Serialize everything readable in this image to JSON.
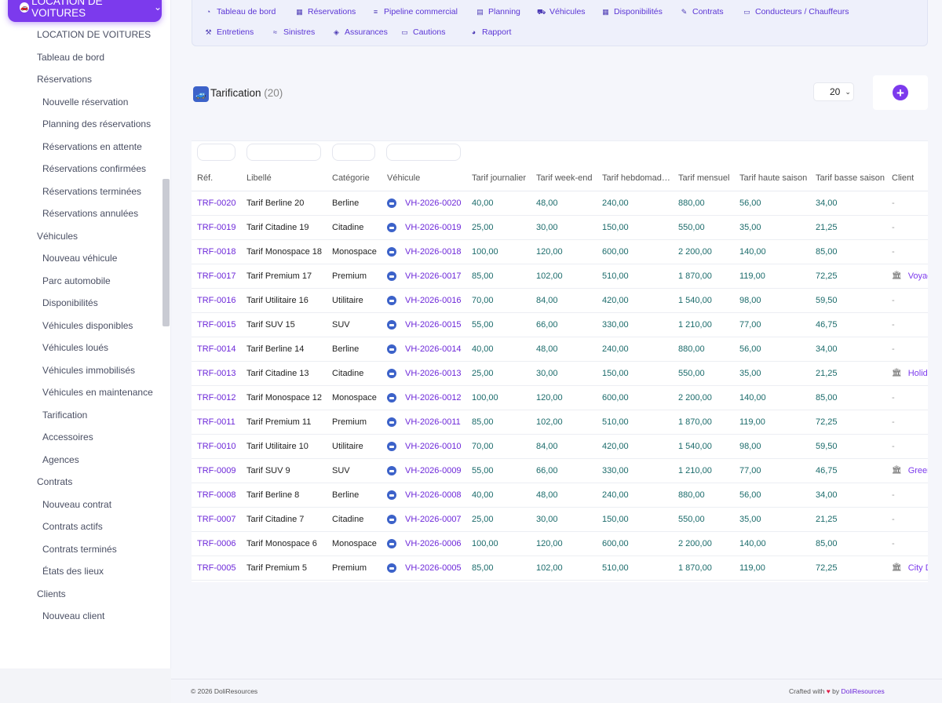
{
  "sidebar": {
    "module_label": "LOCATION DE VOITURES",
    "items": [
      {
        "label": "LOCATION DE VOITURES",
        "level": 1
      },
      {
        "label": "Tableau de bord",
        "level": 1
      },
      {
        "label": "Réservations",
        "level": 1
      },
      {
        "label": "Nouvelle réservation",
        "level": 2
      },
      {
        "label": "Planning des réservations",
        "level": 2
      },
      {
        "label": "Réservations en attente",
        "level": 2
      },
      {
        "label": "Réservations confirmées",
        "level": 2
      },
      {
        "label": "Réservations terminées",
        "level": 2
      },
      {
        "label": "Réservations annulées",
        "level": 2
      },
      {
        "label": "Véhicules",
        "level": 1
      },
      {
        "label": "Nouveau véhicule",
        "level": 2
      },
      {
        "label": "Parc automobile",
        "level": 2
      },
      {
        "label": "Disponibilités",
        "level": 2
      },
      {
        "label": "Véhicules disponibles",
        "level": 2
      },
      {
        "label": "Véhicules loués",
        "level": 2
      },
      {
        "label": "Véhicules immobilisés",
        "level": 2
      },
      {
        "label": "Véhicules en maintenance",
        "level": 2
      },
      {
        "label": "Tarification",
        "level": 2
      },
      {
        "label": "Accessoires",
        "level": 2
      },
      {
        "label": "Agences",
        "level": 2
      },
      {
        "label": "Contrats",
        "level": 1
      },
      {
        "label": "Nouveau contrat",
        "level": 2
      },
      {
        "label": "Contrats actifs",
        "level": 2
      },
      {
        "label": "Contrats terminés",
        "level": 2
      },
      {
        "label": "États des lieux",
        "level": 2
      },
      {
        "label": "Clients",
        "level": 1
      },
      {
        "label": "Nouveau client",
        "level": 2
      }
    ]
  },
  "topnav": {
    "row1": [
      {
        "label": "Tableau de bord",
        "icon": "dashboard-icon"
      },
      {
        "label": "Réservations",
        "icon": "calendar-check-icon"
      },
      {
        "label": "Pipeline commercial",
        "icon": "list-icon"
      },
      {
        "label": "Planning",
        "icon": "calendar-icon"
      },
      {
        "label": "Véhicules",
        "icon": "car-icon"
      },
      {
        "label": "Disponibilités",
        "icon": "grid-icon"
      },
      {
        "label": "Contrats",
        "icon": "contract-icon"
      },
      {
        "label": "Conducteurs / Chauffeurs",
        "icon": "id-card-icon"
      }
    ],
    "row2": [
      {
        "label": "Entretiens",
        "icon": "wrench-icon"
      },
      {
        "label": "Sinistres",
        "icon": "car-crash-icon"
      },
      {
        "label": "Assurances",
        "icon": "shield-icon"
      },
      {
        "label": "Cautions",
        "icon": "money-icon"
      },
      {
        "label": "Rapport",
        "icon": "chart-pie-icon"
      }
    ]
  },
  "page": {
    "title": "Tarification",
    "count": "(20)",
    "limit": "20"
  },
  "table": {
    "columns": [
      "Réf.",
      "Libellé",
      "Catégorie",
      "Véhicule",
      "Tarif journalier",
      "Tarif week-end",
      "Tarif hebdomadaire",
      "Tarif mensuel",
      "Tarif haute saison",
      "Tarif basse saison",
      "Client"
    ],
    "rows": [
      {
        "ref": "TRF-0020",
        "label": "Tarif Berline 20",
        "category": "Berline",
        "vehicle": "VH-2026-0020",
        "daily": "40,00",
        "weekend": "48,00",
        "weekly": "240,00",
        "monthly": "880,00",
        "high": "56,00",
        "low": "34,00",
        "client": "-"
      },
      {
        "ref": "TRF-0019",
        "label": "Tarif Citadine 19",
        "category": "Citadine",
        "vehicle": "VH-2026-0019",
        "daily": "25,00",
        "weekend": "30,00",
        "weekly": "150,00",
        "monthly": "550,00",
        "high": "35,00",
        "low": "21,25",
        "client": "-"
      },
      {
        "ref": "TRF-0018",
        "label": "Tarif Monospace 18",
        "category": "Monospace",
        "vehicle": "VH-2026-0018",
        "daily": "100,00",
        "weekend": "120,00",
        "weekly": "600,00",
        "monthly": "2 200,00",
        "high": "140,00",
        "low": "85,00",
        "client": "-"
      },
      {
        "ref": "TRF-0017",
        "label": "Tarif Premium 17",
        "category": "Premium",
        "vehicle": "VH-2026-0017",
        "daily": "85,00",
        "weekend": "102,00",
        "weekly": "510,00",
        "monthly": "1 870,00",
        "high": "119,00",
        "low": "72,25",
        "client": "Voyag"
      },
      {
        "ref": "TRF-0016",
        "label": "Tarif Utilitaire 16",
        "category": "Utilitaire",
        "vehicle": "VH-2026-0016",
        "daily": "70,00",
        "weekend": "84,00",
        "weekly": "420,00",
        "monthly": "1 540,00",
        "high": "98,00",
        "low": "59,50",
        "client": "-"
      },
      {
        "ref": "TRF-0015",
        "label": "Tarif SUV 15",
        "category": "SUV",
        "vehicle": "VH-2026-0015",
        "daily": "55,00",
        "weekend": "66,00",
        "weekly": "330,00",
        "monthly": "1 210,00",
        "high": "77,00",
        "low": "46,75",
        "client": "-"
      },
      {
        "ref": "TRF-0014",
        "label": "Tarif Berline 14",
        "category": "Berline",
        "vehicle": "VH-2026-0014",
        "daily": "40,00",
        "weekend": "48,00",
        "weekly": "240,00",
        "monthly": "880,00",
        "high": "56,00",
        "low": "34,00",
        "client": "-"
      },
      {
        "ref": "TRF-0013",
        "label": "Tarif Citadine 13",
        "category": "Citadine",
        "vehicle": "VH-2026-0013",
        "daily": "25,00",
        "weekend": "30,00",
        "weekly": "150,00",
        "monthly": "550,00",
        "high": "35,00",
        "low": "21,25",
        "client": "Holida"
      },
      {
        "ref": "TRF-0012",
        "label": "Tarif Monospace 12",
        "category": "Monospace",
        "vehicle": "VH-2026-0012",
        "daily": "100,00",
        "weekend": "120,00",
        "weekly": "600,00",
        "monthly": "2 200,00",
        "high": "140,00",
        "low": "85,00",
        "client": "-"
      },
      {
        "ref": "TRF-0011",
        "label": "Tarif Premium 11",
        "category": "Premium",
        "vehicle": "VH-2026-0011",
        "daily": "85,00",
        "weekend": "102,00",
        "weekly": "510,00",
        "monthly": "1 870,00",
        "high": "119,00",
        "low": "72,25",
        "client": "-"
      },
      {
        "ref": "TRF-0010",
        "label": "Tarif Utilitaire 10",
        "category": "Utilitaire",
        "vehicle": "VH-2026-0010",
        "daily": "70,00",
        "weekend": "84,00",
        "weekly": "420,00",
        "monthly": "1 540,00",
        "high": "98,00",
        "low": "59,50",
        "client": "-"
      },
      {
        "ref": "TRF-0009",
        "label": "Tarif SUV 9",
        "category": "SUV",
        "vehicle": "VH-2026-0009",
        "daily": "55,00",
        "weekend": "66,00",
        "weekly": "330,00",
        "monthly": "1 210,00",
        "high": "77,00",
        "low": "46,75",
        "client": "Green"
      },
      {
        "ref": "TRF-0008",
        "label": "Tarif Berline 8",
        "category": "Berline",
        "vehicle": "VH-2026-0008",
        "daily": "40,00",
        "weekend": "48,00",
        "weekly": "240,00",
        "monthly": "880,00",
        "high": "56,00",
        "low": "34,00",
        "client": "-"
      },
      {
        "ref": "TRF-0007",
        "label": "Tarif Citadine 7",
        "category": "Citadine",
        "vehicle": "VH-2026-0007",
        "daily": "25,00",
        "weekend": "30,00",
        "weekly": "150,00",
        "monthly": "550,00",
        "high": "35,00",
        "low": "21,25",
        "client": "-"
      },
      {
        "ref": "TRF-0006",
        "label": "Tarif Monospace 6",
        "category": "Monospace",
        "vehicle": "VH-2026-0006",
        "daily": "100,00",
        "weekend": "120,00",
        "weekly": "600,00",
        "monthly": "2 200,00",
        "high": "140,00",
        "low": "85,00",
        "client": "-"
      },
      {
        "ref": "TRF-0005",
        "label": "Tarif Premium 5",
        "category": "Premium",
        "vehicle": "VH-2026-0005",
        "daily": "85,00",
        "weekend": "102,00",
        "weekly": "510,00",
        "monthly": "1 870,00",
        "high": "119,00",
        "low": "72,25",
        "client": "City D"
      }
    ]
  },
  "footer": {
    "copyright": "© 2026 DoliResources",
    "crafted": "Crafted with",
    "heart": "♥",
    "by": "by",
    "brand": "DoliResources"
  },
  "colors": {
    "accent": "#7c3aed",
    "link": "#6d28d9",
    "number": "#1b6b6b"
  }
}
